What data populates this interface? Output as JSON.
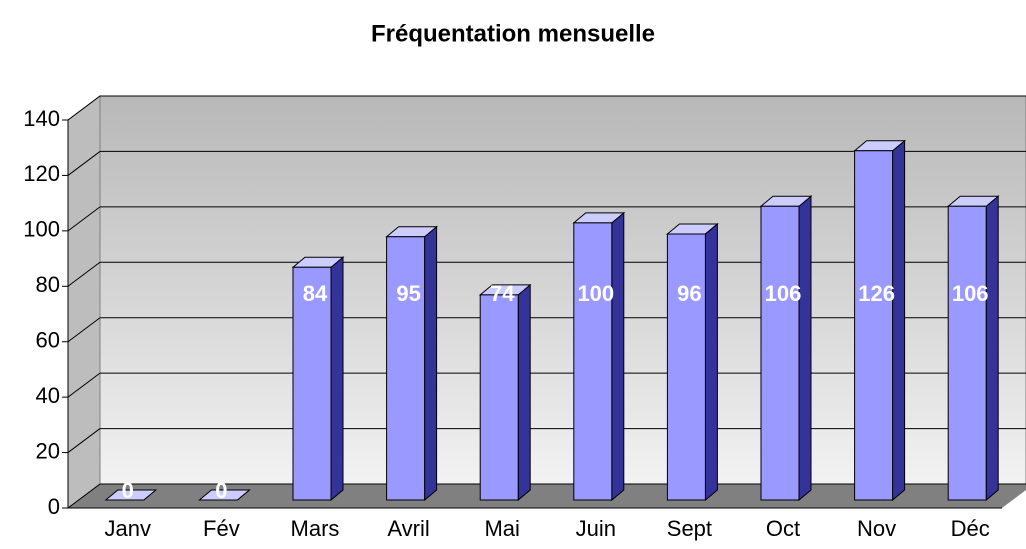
{
  "chart_data": {
    "type": "bar",
    "title": "Fréquentation mensuelle",
    "categories": [
      "Janv",
      "Fév",
      "Mars",
      "Avril",
      "Mai",
      "Juin",
      "Sept",
      "Oct",
      "Nov",
      "Déc"
    ],
    "values": [
      0,
      0,
      84,
      95,
      74,
      100,
      96,
      106,
      126,
      106
    ],
    "color": "#9999ff",
    "ylim": [
      0,
      140
    ],
    "yticks": [
      0,
      20,
      40,
      60,
      80,
      100,
      120,
      140
    ],
    "grid": true
  }
}
